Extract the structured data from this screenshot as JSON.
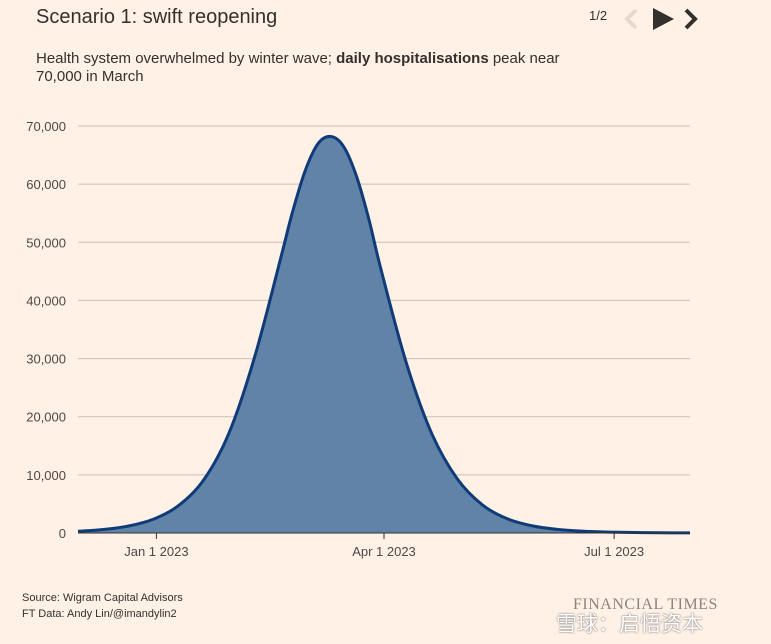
{
  "header": {
    "title": "Scenario 1: swift reopening",
    "subtitle_pre": "Health system overwhelmed by winter wave; ",
    "subtitle_bold": "daily hospitalisations",
    "subtitle_post": " peak near 70,000 in March",
    "pager": "1/2"
  },
  "footer": {
    "source": "Source: Wigram Capital Advisors",
    "credit": "FT Data: Andy Lin/@imandylin2",
    "logo": "FINANCIAL TIMES",
    "watermark": "雪球：启悟资本"
  },
  "colors": {
    "background": "#fff1e5",
    "area_fill": "#6283a8",
    "line": "#0f3c78",
    "grid": "#c8c0b8"
  },
  "chart_data": {
    "type": "area",
    "title": "Scenario 1: swift reopening",
    "xlabel": "",
    "ylabel": "",
    "ylim": [
      0,
      70000
    ],
    "yticks": [
      0,
      10000,
      20000,
      30000,
      40000,
      50000,
      60000,
      70000
    ],
    "ytick_labels": [
      "0",
      "10,000",
      "20,000",
      "30,000",
      "40,000",
      "50,000",
      "60,000",
      "70,000"
    ],
    "xticks": [
      "2023-01-01",
      "2023-04-01",
      "2023-07-01"
    ],
    "xtick_labels": [
      "Jan 1 2023",
      "Apr 1 2023",
      "Jul 1 2023"
    ],
    "xlim": [
      "2022-12-01",
      "2023-07-31"
    ],
    "grid": true,
    "series": [
      {
        "x": [
          "2022-12-01",
          "2022-12-11",
          "2022-12-21",
          "2022-12-31",
          "2023-01-10",
          "2023-01-20",
          "2023-01-30",
          "2023-02-09",
          "2023-02-19",
          "2023-02-24",
          "2023-03-01",
          "2023-03-06",
          "2023-03-11",
          "2023-03-16",
          "2023-03-21",
          "2023-03-26",
          "2023-03-31",
          "2023-04-10",
          "2023-04-20",
          "2023-04-30",
          "2023-05-10",
          "2023-05-20",
          "2023-05-30",
          "2023-06-09",
          "2023-06-19",
          "2023-06-29",
          "2023-07-09",
          "2023-07-19",
          "2023-07-31"
        ],
        "values": [
          300,
          600,
          1200,
          2400,
          4800,
          9300,
          17500,
          30500,
          47000,
          55500,
          62500,
          67000,
          68200,
          66500,
          61500,
          54000,
          45000,
          29000,
          17000,
          9300,
          4800,
          2400,
          1200,
          600,
          300,
          150,
          80,
          40,
          20
        ]
      }
    ]
  }
}
